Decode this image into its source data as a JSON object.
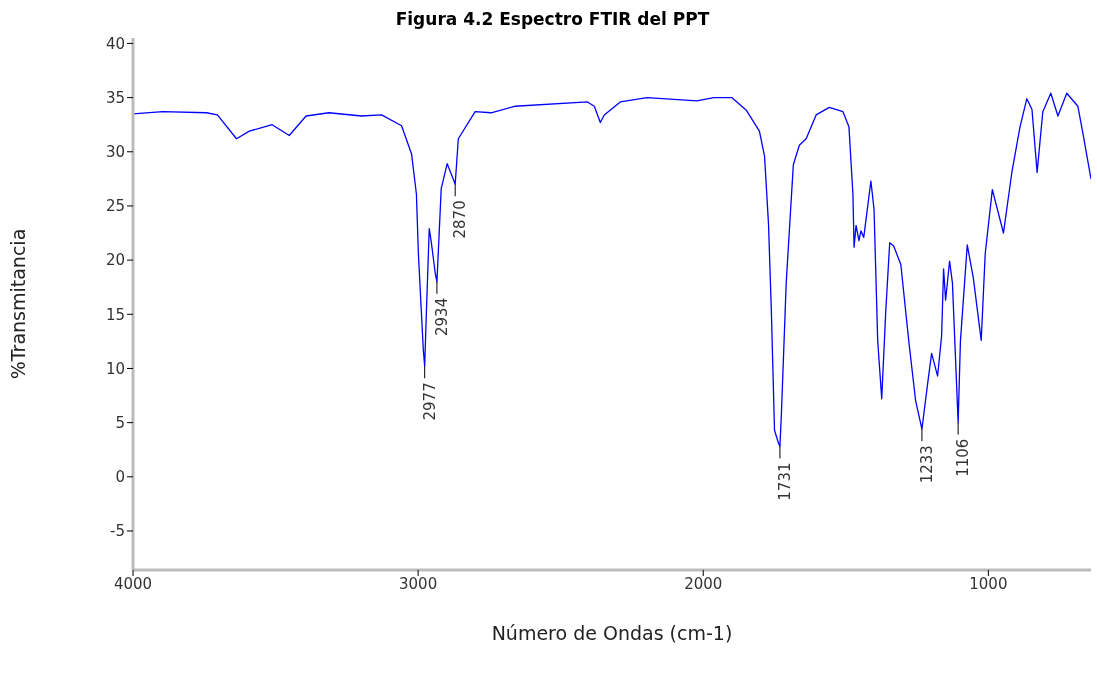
{
  "chart_data": {
    "type": "line",
    "title": "Figura 4.2 Espectro FTIR del PPT",
    "xlabel": "Número de Ondas (cm-1)",
    "ylabel": "%Transmitancia",
    "xlim": [
      4000,
      640
    ],
    "xticks": [
      4000,
      3000,
      2000,
      1000
    ],
    "ylim": [
      -8.6,
      40.5
    ],
    "yticks": [
      -5,
      0,
      5,
      10,
      15,
      20,
      25,
      30,
      35,
      40
    ],
    "grid": false,
    "legend": false,
    "marker": "none",
    "line_style": "solid",
    "series": [
      {
        "color": "#0000ff",
        "x": [
          4000,
          3895,
          3742,
          3704,
          3637,
          3592,
          3512,
          3452,
          3393,
          3313,
          3198,
          3128,
          3058,
          3023,
          3006,
          2999,
          2982,
          2977,
          2971,
          2961,
          2954,
          2940,
          2934,
          2919,
          2898,
          2880,
          2870,
          2859,
          2800,
          2744,
          2661,
          2406,
          2382,
          2361,
          2347,
          2291,
          2197,
          2022,
          1963,
          1900,
          1848,
          1803,
          1785,
          1771,
          1761,
          1750,
          1736,
          1731,
          1726,
          1709,
          1684,
          1663,
          1639,
          1604,
          1558,
          1510,
          1489,
          1475,
          1471,
          1464,
          1454,
          1447,
          1437,
          1412,
          1401,
          1388,
          1374,
          1360,
          1346,
          1332,
          1307,
          1279,
          1255,
          1233,
          1213,
          1199,
          1178,
          1164,
          1157,
          1150,
          1136,
          1126,
          1106,
          1098,
          1074,
          1053,
          1025,
          1011,
          986,
          947,
          917,
          889,
          865,
          847,
          829,
          809,
          781,
          756,
          725,
          686,
          669,
          640
        ],
        "values": [
          33.5,
          33.7,
          33.6,
          33.4,
          31.2,
          31.9,
          32.5,
          31.5,
          33.3,
          33.6,
          33.3,
          33.4,
          32.4,
          29.8,
          26.1,
          20.6,
          11.8,
          10.2,
          15.2,
          22.9,
          21.7,
          18.8,
          18.0,
          26.6,
          28.9,
          27.7,
          27.0,
          31.2,
          33.7,
          33.6,
          34.2,
          34.6,
          34.2,
          32.7,
          33.4,
          34.6,
          35.0,
          34.7,
          35.0,
          35.0,
          33.8,
          31.9,
          29.6,
          23.3,
          15.2,
          4.3,
          3.1,
          2.8,
          5.7,
          17.9,
          28.8,
          30.6,
          31.2,
          33.4,
          34.1,
          33.7,
          32.3,
          26.1,
          21.2,
          23.2,
          21.8,
          22.7,
          22.1,
          27.3,
          24.7,
          12.5,
          7.2,
          15.2,
          21.6,
          21.3,
          19.6,
          12.5,
          7.0,
          4.4,
          8.6,
          11.4,
          9.3,
          13.0,
          19.2,
          16.3,
          19.9,
          17.9,
          5.0,
          12.5,
          21.4,
          18.4,
          12.6,
          20.6,
          26.5,
          22.5,
          28.2,
          32.3,
          34.9,
          33.9,
          28.1,
          33.7,
          35.4,
          33.3,
          35.4,
          34.2,
          31.8,
          27.5
        ]
      }
    ],
    "annotations": [
      {
        "text": "2977",
        "x": 2977,
        "y": 10.2
      },
      {
        "text": "2934",
        "x": 2934,
        "y": 18.0
      },
      {
        "text": "2870",
        "x": 2870,
        "y": 27.0
      },
      {
        "text": "1731",
        "x": 1731,
        "y": 2.8
      },
      {
        "text": "1233",
        "x": 1233,
        "y": 4.4
      },
      {
        "text": "1106",
        "x": 1106,
        "y": 5.0
      }
    ]
  }
}
